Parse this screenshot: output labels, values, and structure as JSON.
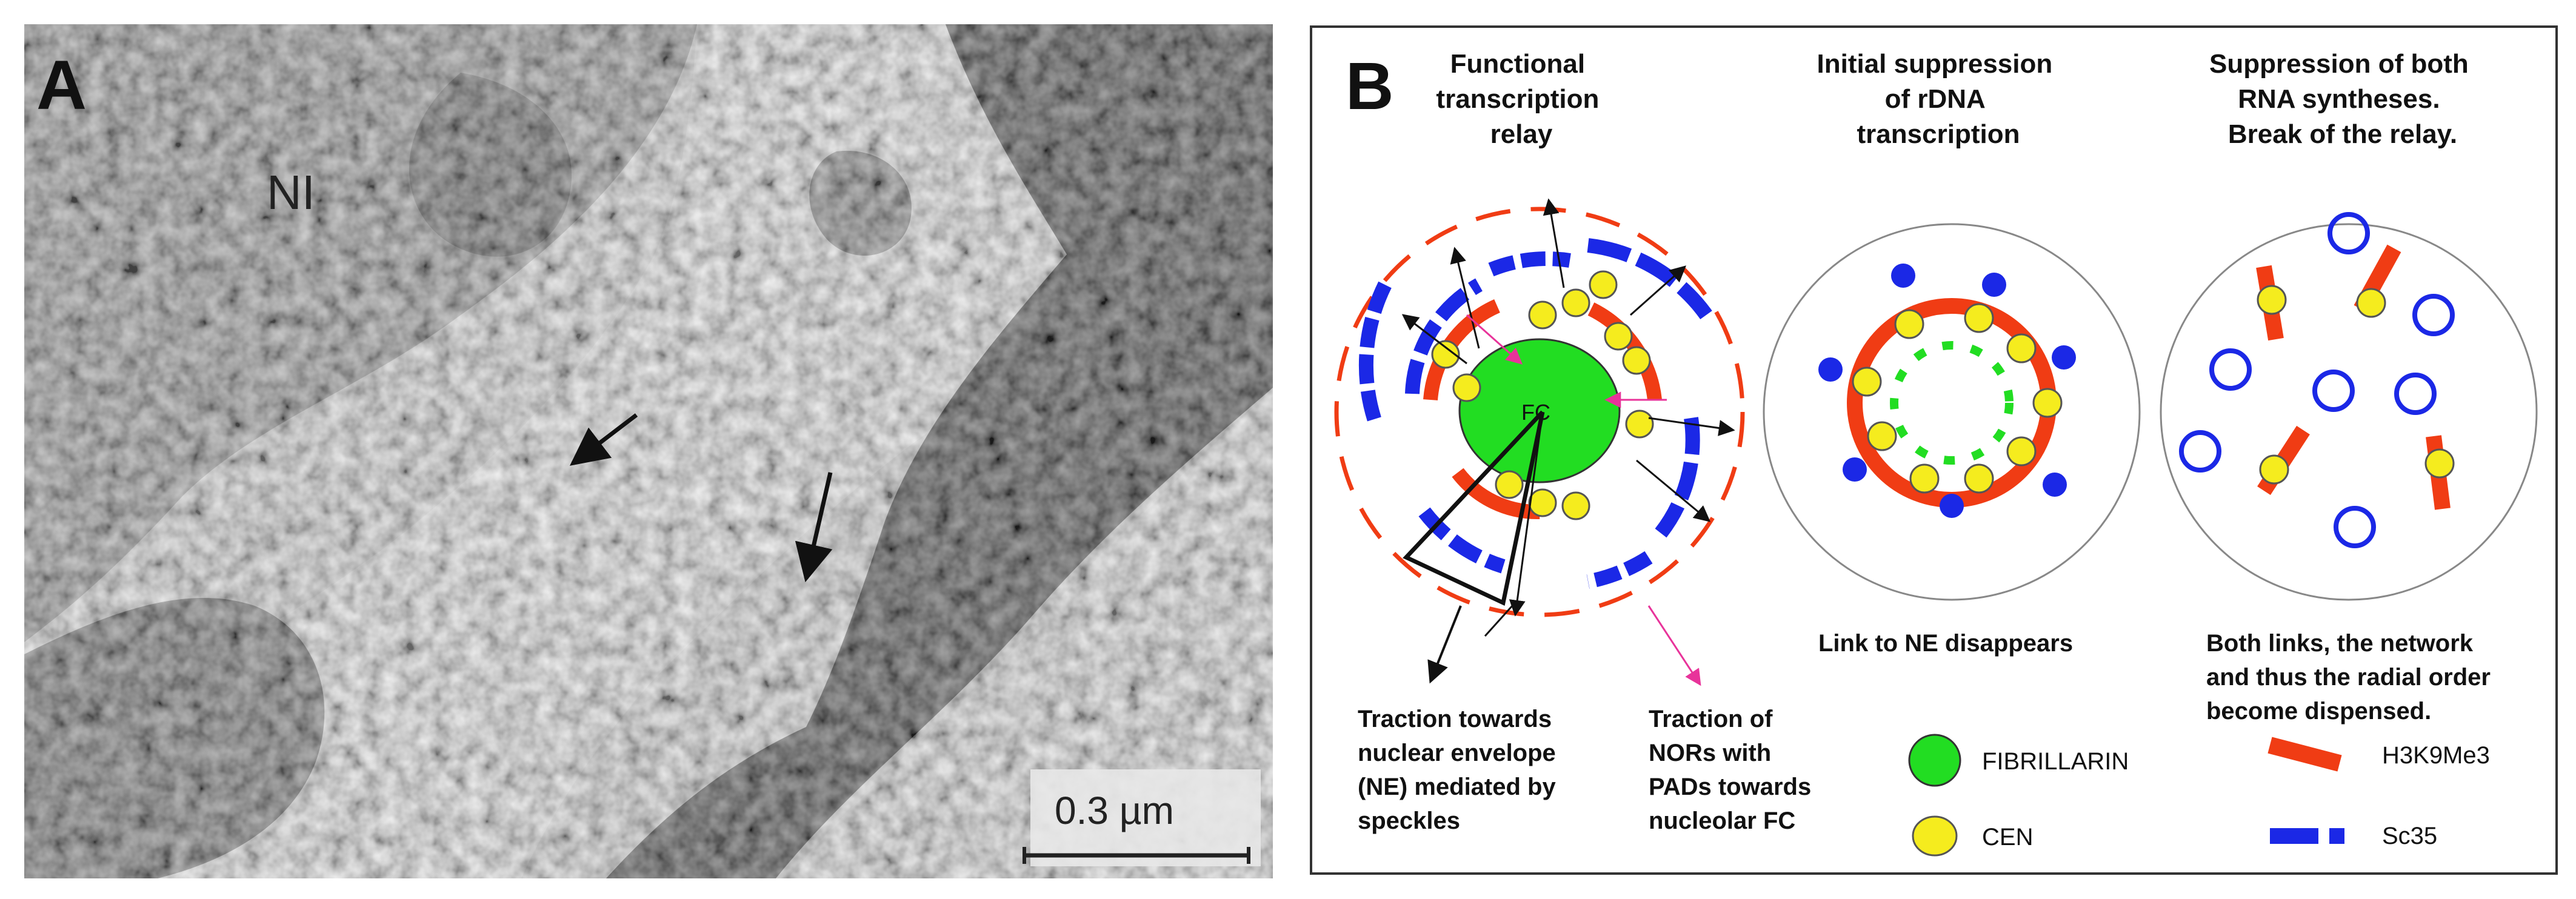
{
  "panel_a": {
    "letter": "A",
    "label_ni": "NI",
    "scale_bar_label": "0.3 µm"
  },
  "panel_b": {
    "letter": "B",
    "col1_title": [
      "Functional",
      "transcription",
      "relay"
    ],
    "col2_title": [
      "Initial suppression",
      "of rDNA",
      "transcription"
    ],
    "col3_title": [
      "Suppression of both",
      "RNA syntheses.",
      "Break of the relay."
    ],
    "fc_label": "FC",
    "caption_ne": [
      "Traction towards",
      "nuclear envelope",
      "(NE) mediated by",
      "speckles"
    ],
    "caption_nor": [
      "Traction of",
      "NORs with",
      "PADs  towards",
      "nucleolar FC"
    ],
    "caption_mid": "Link to NE disappears",
    "caption_right": [
      "Both links, the network",
      "and thus the radial order",
      "become dispensed."
    ],
    "legend": {
      "fibrillarin": "FIBRILLARIN",
      "cen": "CEN",
      "h3k9me3": "H3K9Me3",
      "sc35": "Sc35"
    },
    "colors": {
      "fibrillarin": "#22dd22",
      "cen": "#f5ec1e",
      "h3k9me3": "#f03c14",
      "sc35": "#1b28e6",
      "pink_arrow": "#e8339a"
    }
  }
}
